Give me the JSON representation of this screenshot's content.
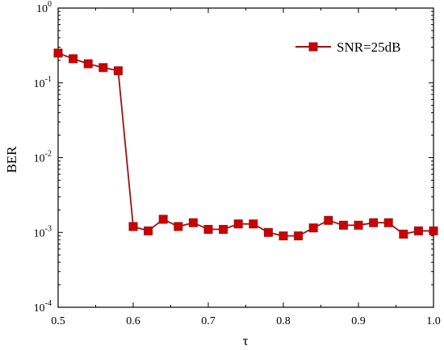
{
  "chart_data": {
    "type": "line",
    "xlabel": "τ",
    "ylabel": "BER",
    "xlim": [
      0.5,
      1.0
    ],
    "ylim": [
      0.0001,
      1
    ],
    "yscale": "log",
    "grid": false,
    "legend_position": "top-right",
    "x_ticks": [
      {
        "value": 0.5,
        "label": "0.5"
      },
      {
        "value": 0.6,
        "label": "0.6"
      },
      {
        "value": 0.7,
        "label": "0.7"
      },
      {
        "value": 0.8,
        "label": "0.8"
      },
      {
        "value": 0.9,
        "label": "0.9"
      },
      {
        "value": 1.0,
        "label": "1.0"
      }
    ],
    "y_ticks": [
      {
        "value": 1,
        "base": "10",
        "exp": "0"
      },
      {
        "value": 0.1,
        "base": "10",
        "exp": "-1"
      },
      {
        "value": 0.01,
        "base": "10",
        "exp": "-2"
      },
      {
        "value": 0.001,
        "base": "10",
        "exp": "-3"
      },
      {
        "value": 0.0001,
        "base": "10",
        "exp": "-4"
      }
    ],
    "series": [
      {
        "name": "SNR=25dB",
        "color": "#cc0000",
        "line_color": "#a01010",
        "marker": "square",
        "x": [
          0.5,
          0.52,
          0.54,
          0.56,
          0.58,
          0.6,
          0.62,
          0.64,
          0.66,
          0.68,
          0.7,
          0.72,
          0.74,
          0.76,
          0.78,
          0.8,
          0.82,
          0.84,
          0.86,
          0.88,
          0.9,
          0.92,
          0.94,
          0.96,
          0.98,
          1.0
        ],
        "y": [
          0.25,
          0.21,
          0.18,
          0.16,
          0.145,
          0.0012,
          0.00105,
          0.0015,
          0.0012,
          0.00135,
          0.0011,
          0.0011,
          0.0013,
          0.0013,
          0.001,
          0.0009,
          0.0009,
          0.00115,
          0.00145,
          0.00125,
          0.00125,
          0.00135,
          0.00135,
          0.00095,
          0.00105,
          0.00105
        ]
      }
    ]
  }
}
